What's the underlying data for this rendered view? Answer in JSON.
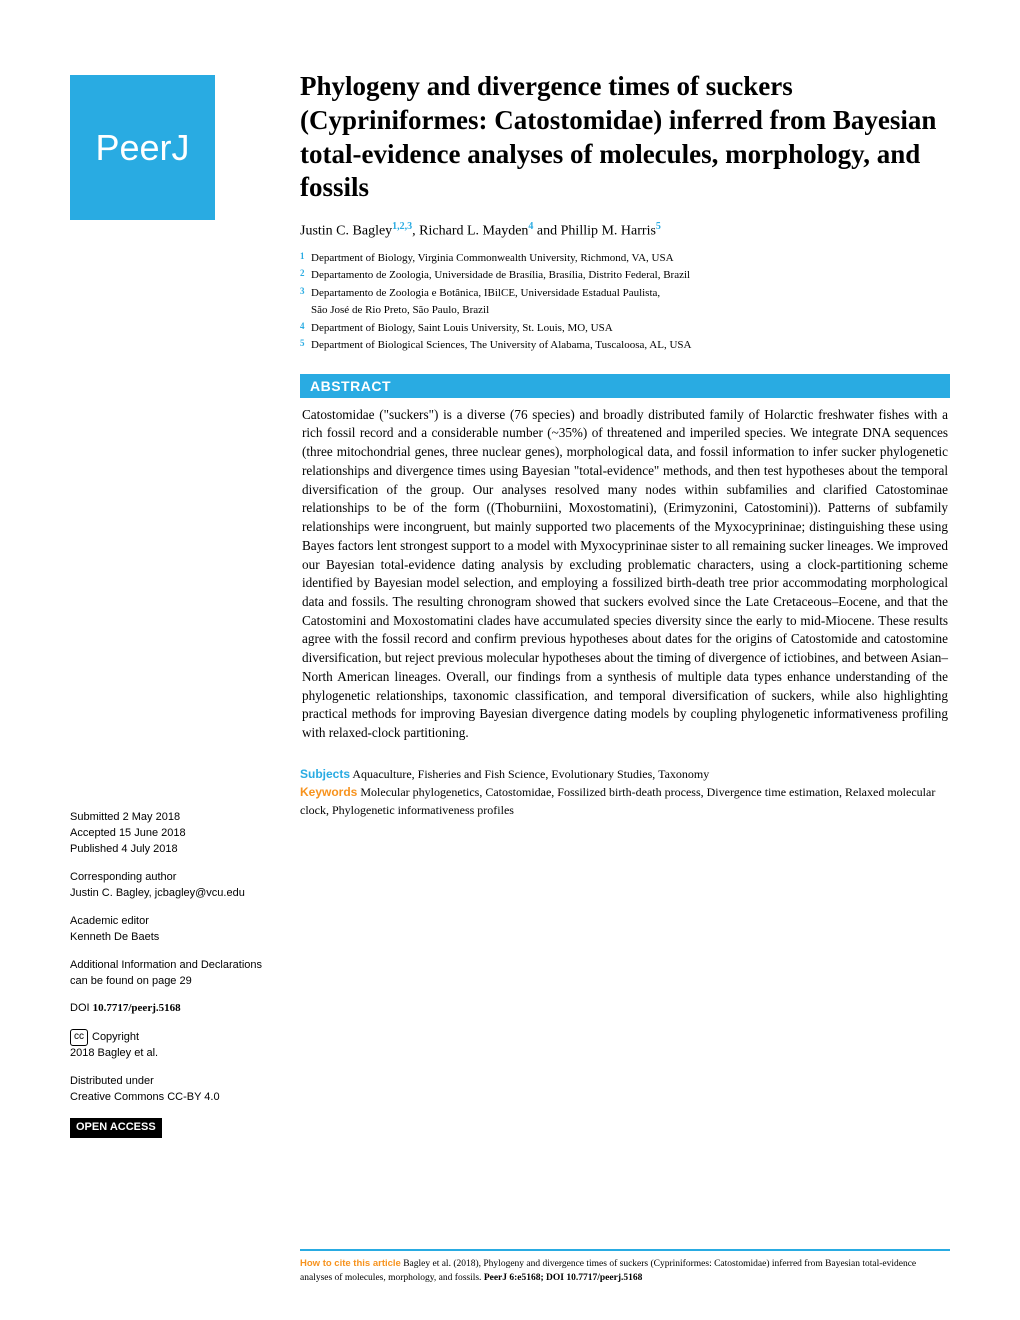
{
  "logo": "PeerJ",
  "title": "Phylogeny and divergence times of suckers (Cypriniformes: Catostomidae) inferred from Bayesian total-evidence analyses of molecules, morphology, and fossils",
  "authors": {
    "a1": {
      "name": "Justin C. Bagley",
      "sup": "1,2,3"
    },
    "a2": {
      "name": "Richard L. Mayden",
      "sup": "4"
    },
    "a3": {
      "name": "Phillip M. Harris",
      "sup": "5"
    }
  },
  "affiliations": {
    "1": "Department of Biology, Virginia Commonwealth University, Richmond, VA, USA",
    "2": "Departamento de Zoologia, Universidade de Brasília, Brasília, Distrito Federal, Brazil",
    "3a": "Departamento de Zoologia e Botânica, IBilCE, Universidade Estadual Paulista,",
    "3b": "São José de Rio Preto, São Paulo, Brazil",
    "4": "Department of Biology, Saint Louis University, St. Louis, MO, USA",
    "5": "Department of Biological Sciences, The University of Alabama, Tuscaloosa, AL, USA"
  },
  "abstract": {
    "header": "ABSTRACT",
    "body": "Catostomidae (\"suckers\") is a diverse (76 species) and broadly distributed family of Holarctic freshwater fishes with a rich fossil record and a considerable number (~35%) of threatened and imperiled species. We integrate DNA sequences (three mitochondrial genes, three nuclear genes), morphological data, and fossil information to infer sucker phylogenetic relationships and divergence times using Bayesian \"total-evidence\" methods, and then test hypotheses about the temporal diversification of the group. Our analyses resolved many nodes within subfamilies and clarified Catostominae relationships to be of the form ((Thoburniini, Moxostomatini), (Erimyzonini, Catostomini)). Patterns of subfamily relationships were incongruent, but mainly supported two placements of the Myxocyprininae; distinguishing these using Bayes factors lent strongest support to a model with Myxocyprininae sister to all remaining sucker lineages. We improved our Bayesian total-evidence dating analysis by excluding problematic characters, using a clock-partitioning scheme identified by Bayesian model selection, and employing a fossilized birth-death tree prior accommodating morphological data and fossils. The resulting chronogram showed that suckers evolved since the Late Cretaceous–Eocene, and that the Catostomini and Moxostomatini clades have accumulated species diversity since the early to mid-Miocene. These results agree with the fossil record and confirm previous hypotheses about dates for the origins of Catostomide and catostomine diversification, but reject previous molecular hypotheses about the timing of divergence of ictiobines, and between Asian–North American lineages. Overall, our findings from a synthesis of multiple data types enhance understanding of the phylogenetic relationships, taxonomic classification, and temporal diversification of suckers, while also highlighting practical methods for improving Bayesian divergence dating models by coupling phylogenetic informativeness profiling with relaxed-clock partitioning."
  },
  "subjects": {
    "label": "Subjects",
    "text": "Aquaculture, Fisheries and Fish Science, Evolutionary Studies, Taxonomy"
  },
  "keywords": {
    "label": "Keywords",
    "text": "Molecular phylogenetics, Catostomidae, Fossilized birth-death process, Divergence time estimation, Relaxed molecular clock, Phylogenetic informativeness profiles"
  },
  "sidebar": {
    "submitted_label": "Submitted",
    "submitted": "2 May 2018",
    "accepted_label": "Accepted",
    "accepted": "15 June 2018",
    "published_label": "Published",
    "published": "4 July 2018",
    "corresponding_label": "Corresponding author",
    "corresponding": "Justin C. Bagley, jcbagley@vcu.edu",
    "editor_label": "Academic editor",
    "editor": "Kenneth De Baets",
    "additional": "Additional Information and Declarations can be found on page 29",
    "doi_label": "DOI",
    "doi": "10.7717/peerj.5168",
    "copyright_label": "Copyright",
    "copyright": "2018 Bagley et al.",
    "distributed_label": "Distributed under",
    "distributed": "Creative Commons CC-BY 4.0",
    "open_access": "OPEN ACCESS"
  },
  "citation": {
    "label": "How to cite this article",
    "text": "Bagley et al. (2018), Phylogeny and divergence times of suckers (Cypriniformes: Catostomidae) inferred from Bayesian total-evidence analyses of molecules, morphology, and fossils. ",
    "journal": "PeerJ 6:e5168; DOI 10.7717/peerj.5168"
  },
  "colors": {
    "brand_blue": "#29abe2",
    "brand_orange": "#f7931e"
  }
}
